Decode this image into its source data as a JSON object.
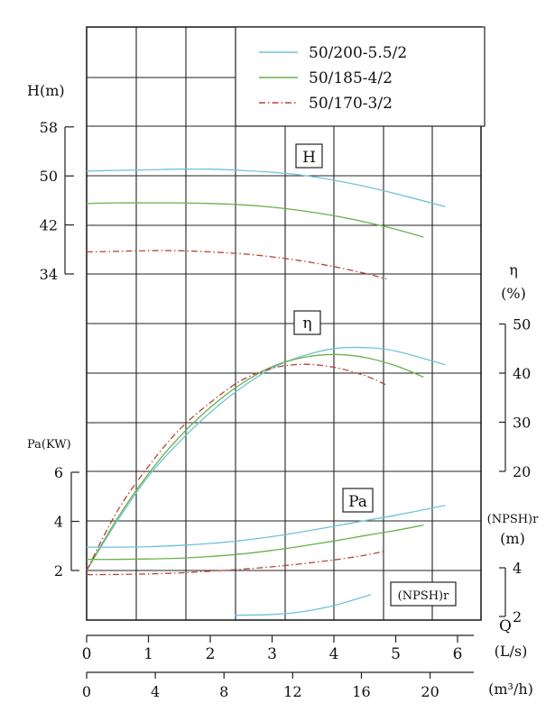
{
  "chart_data": {
    "type": "line",
    "legend": {
      "position": "top-right",
      "entries": [
        {
          "name": "50/200-5.5/2",
          "color": "#6fc3d6",
          "dash": "solid"
        },
        {
          "name": "50/185-4/2",
          "color": "#6ab04c",
          "dash": "solid"
        },
        {
          "name": "50/170-3/2",
          "color": "#b5453a",
          "dash": "dash-dot"
        }
      ]
    },
    "x_axis": {
      "label": "Q",
      "primary": {
        "unit": "(L/s)",
        "range": [
          0,
          6
        ],
        "ticks": [
          "0",
          "1",
          "2",
          "3",
          "4",
          "5",
          "6"
        ]
      },
      "secondary": {
        "unit": "(m³/h)",
        "range": [
          0,
          21.6
        ],
        "ticks": [
          "0",
          "4",
          "8",
          "12",
          "16",
          "20"
        ]
      }
    },
    "axes": {
      "H": {
        "label": "H(m)",
        "ticks": [
          "34",
          "42",
          "50",
          "58"
        ],
        "range": [
          34,
          58
        ]
      },
      "eta": {
        "label": "η",
        "unit": "(%)",
        "ticks": [
          "20",
          "30",
          "40",
          "50"
        ],
        "range": [
          20,
          50
        ]
      },
      "Pa": {
        "label": "Pa(KW)",
        "ticks": [
          "2",
          "4",
          "6"
        ],
        "range": [
          2,
          6
        ]
      },
      "NPSH": {
        "label": "(NPSH)r",
        "unit": "(m)",
        "ticks": [
          "2",
          "4"
        ],
        "range": [
          2,
          4
        ]
      }
    },
    "panel_labels": {
      "H": "H",
      "eta": "η",
      "Pa": "Pa",
      "NPSH": "(NPSH)r"
    },
    "grid": true,
    "series": [
      {
        "name": "50/200-5.5/2",
        "quantity": "H",
        "x": [
          0,
          0.5,
          1,
          1.5,
          2,
          2.5,
          3,
          3.5,
          4,
          4.5,
          5,
          5.8
        ],
        "y": [
          50.8,
          50.9,
          51,
          51.1,
          51.1,
          50.9,
          50.6,
          50.1,
          49.3,
          48.3,
          47.1,
          45
        ]
      },
      {
        "name": "50/185-4/2",
        "quantity": "H",
        "x": [
          0,
          0.5,
          1,
          1.5,
          2,
          2.5,
          3,
          3.5,
          4,
          4.5,
          5,
          5.45
        ],
        "y": [
          45.5,
          45.6,
          45.6,
          45.6,
          45.5,
          45.3,
          44.9,
          44.3,
          43.5,
          42.5,
          41.3,
          40
        ]
      },
      {
        "name": "50/170-3/2",
        "quantity": "H",
        "x": [
          0,
          0.5,
          1,
          1.5,
          2,
          2.5,
          3,
          3.5,
          4,
          4.5,
          4.85
        ],
        "y": [
          37.6,
          37.7,
          37.8,
          37.8,
          37.6,
          37.3,
          36.8,
          36.1,
          35.2,
          34.1,
          33.2
        ]
      },
      {
        "name": "50/200-5.5/2",
        "quantity": "eta",
        "x": [
          0,
          0.5,
          1,
          1.5,
          2,
          2.5,
          3,
          3.5,
          4,
          4.5,
          5,
          5.8
        ],
        "y": [
          0,
          10,
          19,
          26,
          32,
          37,
          41,
          43.5,
          45,
          45.2,
          44.5,
          41.7
        ]
      },
      {
        "name": "50/185-4/2",
        "quantity": "eta",
        "x": [
          0,
          0.5,
          1,
          1.5,
          2,
          2.5,
          3,
          3.5,
          4,
          4.5,
          5,
          5.45
        ],
        "y": [
          0,
          10.5,
          19.5,
          27,
          33,
          37.8,
          41.3,
          43.2,
          43.8,
          43.2,
          41.5,
          39.2
        ]
      },
      {
        "name": "50/170-3/2",
        "quantity": "eta",
        "x": [
          0,
          0.5,
          1,
          1.5,
          2,
          2.5,
          3,
          3.5,
          4,
          4.5,
          4.85
        ],
        "y": [
          0,
          12,
          21,
          28.5,
          34,
          38.5,
          41,
          41.8,
          41.2,
          39.5,
          37.6
        ]
      },
      {
        "name": "50/200-5.5/2",
        "quantity": "Pa",
        "x": [
          0,
          0.5,
          1,
          1.5,
          2,
          2.5,
          3,
          3.5,
          4,
          4.5,
          5,
          5.8
        ],
        "y": [
          2.95,
          2.95,
          2.97,
          3.02,
          3.1,
          3.22,
          3.38,
          3.58,
          3.8,
          4.03,
          4.25,
          4.65
        ]
      },
      {
        "name": "50/185-4/2",
        "quantity": "Pa",
        "x": [
          0,
          0.5,
          1,
          1.5,
          2,
          2.5,
          3,
          3.5,
          4,
          4.5,
          5,
          5.45
        ],
        "y": [
          2.45,
          2.45,
          2.47,
          2.5,
          2.57,
          2.67,
          2.82,
          3.0,
          3.2,
          3.42,
          3.63,
          3.85
        ]
      },
      {
        "name": "50/170-3/2",
        "quantity": "Pa",
        "x": [
          0,
          0.5,
          1,
          1.5,
          2,
          2.5,
          3,
          3.5,
          4,
          4.5,
          4.85
        ],
        "y": [
          1.83,
          1.84,
          1.86,
          1.9,
          1.97,
          2.05,
          2.15,
          2.28,
          2.43,
          2.62,
          2.8
        ]
      },
      {
        "name": "50/200-5.5/2",
        "quantity": "NPSH",
        "x": [
          2.4,
          3,
          3.5,
          4,
          4.6
        ],
        "y": [
          2.05,
          2.08,
          2.2,
          2.45,
          2.9
        ]
      }
    ]
  }
}
